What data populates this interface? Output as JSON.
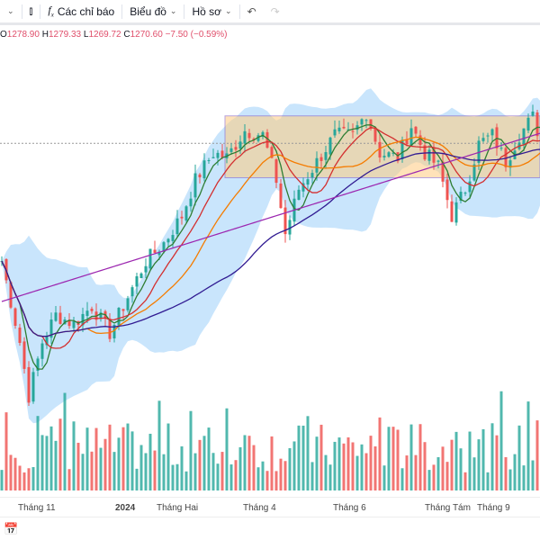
{
  "toolbar": {
    "indicators_label": "Các chỉ báo",
    "chart_label": "Biểu đồ",
    "profile_label": "Hồ sơ"
  },
  "ohlc": {
    "o_label": "O",
    "o": "1278.90",
    "h_label": "H",
    "h": "1279.33",
    "l_label": "L",
    "l": "1269.72",
    "c_label": "C",
    "c": "1270.60",
    "change": "−7.50 (−0.59%)"
  },
  "xaxis": {
    "labels": [
      "Tháng 11",
      "2024",
      "Tháng Hai",
      "Tháng 4",
      "Tháng 6",
      "Tháng Tám",
      "Tháng 9"
    ]
  },
  "colors": {
    "up": "#26a69a",
    "down": "#ef5350",
    "ma_short": "#2e7d32",
    "ma_mid": "#d32f2f",
    "ma_20": "#f57c00",
    "ma_50": "#311b92",
    "ma_200": "#9c27b0",
    "band": "#bbdefb",
    "box": "#ffcc80"
  },
  "chart_data": {
    "type": "candlestick",
    "close_keypoints": [
      [
        0,
        1166
      ],
      [
        4,
        1094
      ],
      [
        6,
        1046
      ],
      [
        9,
        1094
      ],
      [
        12,
        1118
      ],
      [
        16,
        1110
      ],
      [
        20,
        1126
      ],
      [
        24,
        1102
      ],
      [
        28,
        1134
      ],
      [
        32,
        1166
      ],
      [
        36,
        1182
      ],
      [
        40,
        1206
      ],
      [
        43,
        1238
      ],
      [
        47,
        1262
      ],
      [
        50,
        1258
      ],
      [
        54,
        1282
      ],
      [
        58,
        1278
      ],
      [
        61,
        1238
      ],
      [
        63,
        1190
      ],
      [
        66,
        1230
      ],
      [
        70,
        1254
      ],
      [
        74,
        1278
      ],
      [
        78,
        1278
      ],
      [
        81,
        1298
      ],
      [
        84,
        1262
      ],
      [
        88,
        1258
      ],
      [
        91,
        1286
      ],
      [
        94,
        1262
      ],
      [
        97,
        1250
      ],
      [
        100,
        1206
      ],
      [
        103,
        1230
      ],
      [
        106,
        1270
      ],
      [
        109,
        1278
      ],
      [
        112,
        1254
      ],
      [
        115,
        1278
      ],
      [
        118,
        1294
      ],
      [
        120,
        1270
      ]
    ],
    "last_close": 1270.6,
    "range_box": {
      "top": 1295,
      "bottom": 1240
    },
    "moving_averages": [
      5,
      10,
      20,
      50,
      200
    ]
  }
}
